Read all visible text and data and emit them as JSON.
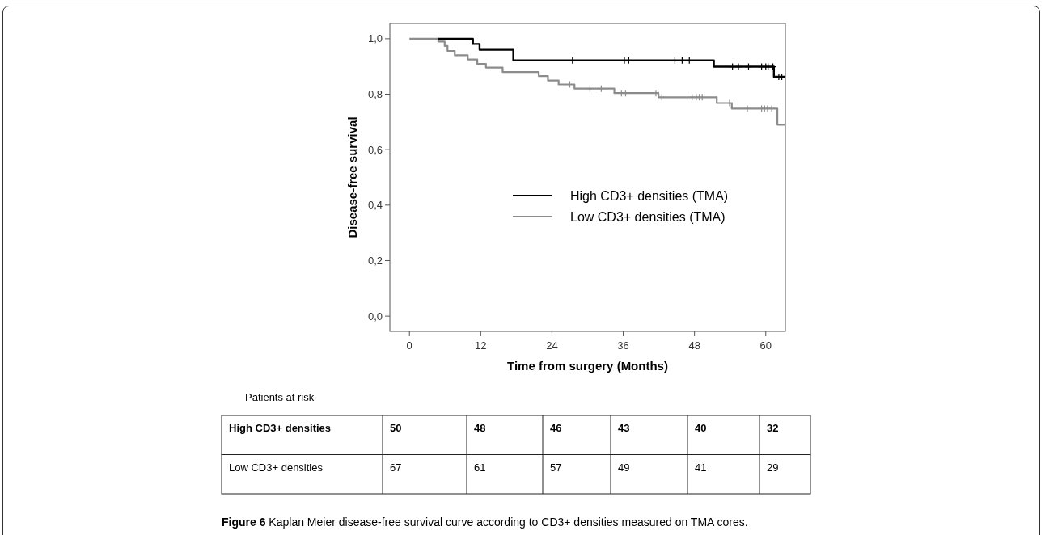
{
  "chart_data": [
    {
      "type": "step",
      "xlabel": "Time from surgery (Months)",
      "ylabel": "Disease-free survival",
      "xlim": [
        -3.3,
        63.3
      ],
      "xticks": [
        0,
        12,
        24,
        36,
        48,
        60
      ],
      "ylim": [
        -0.055,
        1.055
      ],
      "yticks": [
        {
          "value": 0,
          "label": "0,0"
        },
        {
          "value": 0.2,
          "label": "0,2"
        },
        {
          "value": 0.4,
          "label": "0,4"
        },
        {
          "value": 0.6,
          "label": "0,6"
        },
        {
          "value": 0.8,
          "label": "0,8"
        },
        {
          "value": 1,
          "label": "1,0"
        }
      ],
      "legend": "right",
      "grid": false,
      "series": [
        {
          "name": "Low CD3+ densities (TMA)",
          "color": "#8c8c8c",
          "x": [
            0,
            4.86,
            5.93,
            6.41,
            7.63,
            9.82,
            11.42,
            12.88,
            15.69,
            21.77,
            23.32,
            25.12,
            27.79,
            34.5,
            41.93,
            51.75,
            54.28,
            61.95,
            63.3
          ],
          "values": [
            1,
            0.99,
            0.974,
            0.956,
            0.94,
            0.925,
            0.909,
            0.896,
            0.88,
            0.865,
            0.849,
            0.835,
            0.82,
            0.804,
            0.789,
            0.768,
            0.748,
            0.69,
            0.69
          ]
        },
        {
          "name": "High CD3+ densities (TMA)",
          "color": "#000000",
          "x": [
            4.86,
            10.69,
            11.81,
            17.49,
            51.26,
            61.37,
            63.3
          ],
          "values": [
            1,
            0.981,
            0.96,
            0.922,
            0.899,
            0.863,
            0.863
          ]
        },
        {
          "type": "scatter",
          "marker": "cross",
          "color": "#8c8c8c",
          "x": [
            27.0,
            30.4,
            32.3,
            35.7,
            36.4,
            41.5,
            42.5,
            47.6,
            48.3,
            48.8,
            49.3,
            53.9,
            56.9,
            59.3,
            59.8,
            60.3,
            61.0
          ],
          "values": [
            0.835,
            0.82,
            0.82,
            0.804,
            0.804,
            0.804,
            0.789,
            0.789,
            0.789,
            0.789,
            0.789,
            0.768,
            0.748,
            0.748,
            0.748,
            0.748,
            0.748
          ]
        },
        {
          "type": "scatter",
          "marker": "cross",
          "color": "#000000",
          "x": [
            27.45,
            36.2,
            36.93,
            44.7,
            45.92,
            47.13,
            54.4,
            55.4,
            57.1,
            59.3,
            60.0,
            60.4,
            61.2,
            62.2,
            62.7
          ],
          "values": [
            0.922,
            0.922,
            0.922,
            0.922,
            0.922,
            0.922,
            0.899,
            0.899,
            0.899,
            0.899,
            0.899,
            0.899,
            0.899,
            0.863,
            0.863
          ]
        }
      ]
    },
    {
      "type": "other",
      "title": "Patients at risk",
      "annotations": [
        "High CD3+ densities",
        "50",
        "48",
        "46",
        "43",
        "40",
        "32",
        "Low CD3+ densities",
        "67",
        "61",
        "57",
        "49",
        "41",
        "29",
        "Figure 6",
        "Kaplan Meier disease-free survival curve according to CD3+ densities measured on TMA cores."
      ]
    }
  ]
}
